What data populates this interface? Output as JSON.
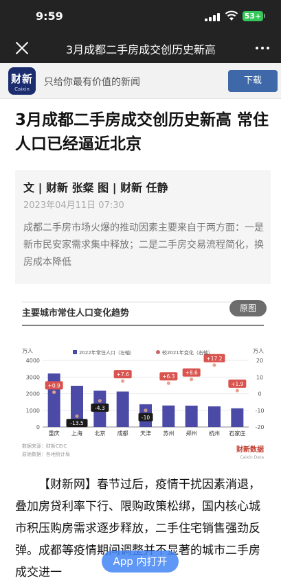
{
  "status": {
    "time": "9:59",
    "battery": "53+"
  },
  "nav": {
    "title": "3月成都二手房成交创历史新高"
  },
  "banner": {
    "logo_cn": "财新",
    "logo_en": "Caixin",
    "slogan": "只给你最有价值的新闻",
    "download_label": "下载"
  },
  "article": {
    "headline": "3月成都二手房成交创历史新高 常住人口已经逼近北京",
    "byline": "文 | 财新 张粲 图 | 财新 任静",
    "date": "2023年04月11日 07:30",
    "summary": "成都二手房市场火爆的推动因素主要来自于两方面：一是新市民安家需求集中释放；二是二手房交易流程简化，换房成本降低",
    "original_image_label": "原图",
    "body_source": "【财新网】",
    "body": "春节过后，疫情干扰因素消退，叠加房贷利率下行、限购政策松绑，国内核心城市积压购房需求逐步释放，二手住宅销售强劲反弹。成都等疫情期间调整并不显著的城市二手房成交进一"
  },
  "open_app_label": "App 内打开",
  "chart_data": {
    "type": "bar",
    "title": "主要城市常住人口变化趋势",
    "ylabel": "万人",
    "y2label": "万人",
    "categories": [
      "重庆",
      "上海",
      "北京",
      "成都",
      "天津",
      "苏州",
      "郑州",
      "杭州",
      "石家庄"
    ],
    "series": [
      {
        "name": "2022年常住人口（左轴）",
        "values": [
          3213,
          2476,
          2184,
          2127,
          1363,
          1291,
          1283,
          1238,
          1122
        ],
        "color": "#4b4aa6"
      },
      {
        "name": "较2021年变化（右轴）",
        "values": [
          0.9,
          -13.5,
          -4.3,
          7.6,
          -10,
          6.3,
          8.6,
          17.2,
          1.9
        ],
        "color": "#c46a6a"
      }
    ],
    "ylim": [
      0,
      4000
    ],
    "yticks": [
      0,
      1000,
      2000,
      3000,
      4000
    ],
    "y2lim": [
      -20,
      20
    ],
    "y2ticks": [
      -20,
      -10,
      0,
      10,
      20
    ],
    "source_line1": "数据来源：财新CEIC",
    "source_line2": "原始数据：各地统计局",
    "brand": "财新数据",
    "brand_en": "Caixin Data"
  }
}
